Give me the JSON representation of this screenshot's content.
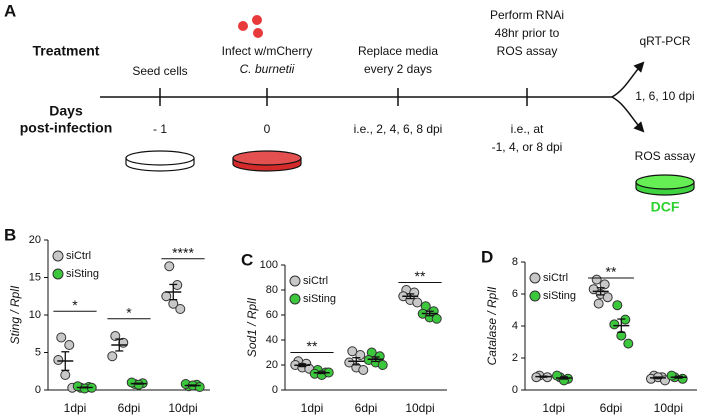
{
  "diagram": {
    "panel": "A",
    "row_labels": [
      "Treatment",
      "Days",
      "post-infection"
    ],
    "steps": [
      {
        "treatment": [
          "Seed cells"
        ],
        "day": [
          "- 1"
        ]
      },
      {
        "treatment": [
          "Infect w/mCherry",
          "C. burnetii"
        ],
        "day": [
          "0"
        ]
      },
      {
        "treatment": [
          "Replace media",
          "every 2 days"
        ],
        "day": [
          "i.e., 2, 4, 6, 8 dpi"
        ]
      },
      {
        "treatment": [
          "Perform RNAi",
          "48hr prior to",
          "ROS assay"
        ],
        "day": [
          "i.e., at",
          "-1, 4, or 8 dpi"
        ]
      }
    ],
    "outcomes": {
      "top": "qRT-PCR",
      "days": "1, 6, 10 dpi",
      "bottom": "ROS assay",
      "stain": "DCF"
    }
  },
  "chart_data": [
    {
      "type": "dot",
      "panel": "B",
      "y_label": "Sting / RplI",
      "categories": [
        "1dpi",
        "6dpi",
        "10dpi"
      ],
      "series": [
        {
          "name": "siCtrl",
          "color": "#c8c8c8",
          "values": [
            [
              7,
              6,
              4,
              2,
              0.3
            ],
            [
              7.2,
              6.3,
              4.5
            ],
            [
              16.5,
              14,
              12.5,
              11.5,
              10.8
            ]
          ]
        },
        {
          "name": "siSting",
          "color": "#3cc83c",
          "values": [
            [
              0.3,
              0.4,
              0.5,
              0.2,
              0.3
            ],
            [
              0.8,
              0.9,
              1.0,
              0.7
            ],
            [
              0.5,
              0.7,
              0.8,
              0.6,
              0.4
            ]
          ]
        }
      ],
      "ylim": [
        0,
        20
      ],
      "yticks": [
        0,
        5,
        10,
        15,
        20
      ],
      "annotations": [
        {
          "text": "*",
          "category": "1dpi",
          "y": 10.5
        },
        {
          "text": "*",
          "category": "6dpi",
          "y": 9.5
        },
        {
          "text": "****",
          "category": "10dpi",
          "y": 17.5
        }
      ]
    },
    {
      "type": "dot",
      "panel": "C",
      "y_label": "Sod1 / RplI",
      "categories": [
        "1dpi",
        "6dpi",
        "10dpi"
      ],
      "series": [
        {
          "name": "siCtrl",
          "color": "#c8c8c8",
          "values": [
            [
              23,
              21,
              20,
              18,
              17
            ],
            [
              31,
              28,
              22,
              18,
              16
            ],
            [
              80,
              78,
              75,
              72,
              70
            ]
          ]
        },
        {
          "name": "siSting",
          "color": "#3cc83c",
          "values": [
            [
              16,
              14,
              13,
              12,
              14
            ],
            [
              30,
              27,
              24,
              22,
              20
            ],
            [
              67,
              63,
              61,
              58,
              57
            ]
          ]
        }
      ],
      "ylim": [
        0,
        100
      ],
      "yticks": [
        0,
        20,
        40,
        60,
        80,
        100
      ],
      "annotations": [
        {
          "text": "**",
          "category": "1dpi",
          "y": 30
        },
        {
          "text": "**",
          "category": "10dpi",
          "y": 86
        }
      ]
    },
    {
      "type": "dot",
      "panel": "D",
      "y_label": "Catalase / RplI",
      "categories": [
        "1dpi",
        "6dpi",
        "10dpi"
      ],
      "series": [
        {
          "name": "siCtrl",
          "color": "#c8c8c8",
          "values": [
            [
              0.9,
              0.8,
              0.8
            ],
            [
              6.9,
              6.6,
              6.3,
              6.0,
              5.8,
              5.4
            ],
            [
              0.9,
              0.8,
              0.7,
              0.8,
              0.6
            ]
          ]
        },
        {
          "name": "siSting",
          "color": "#3cc83c",
          "values": [
            [
              0.8,
              0.7,
              0.9,
              0.6
            ],
            [
              5.3,
              4.4,
              4.1,
              3.4,
              2.9
            ],
            [
              0.8,
              0.7,
              0.9
            ]
          ]
        }
      ],
      "ylim": [
        0,
        8
      ],
      "yticks": [
        0,
        2,
        4,
        6,
        8
      ],
      "annotations": [
        {
          "text": "**",
          "category": "6dpi",
          "y": 7
        }
      ]
    }
  ]
}
